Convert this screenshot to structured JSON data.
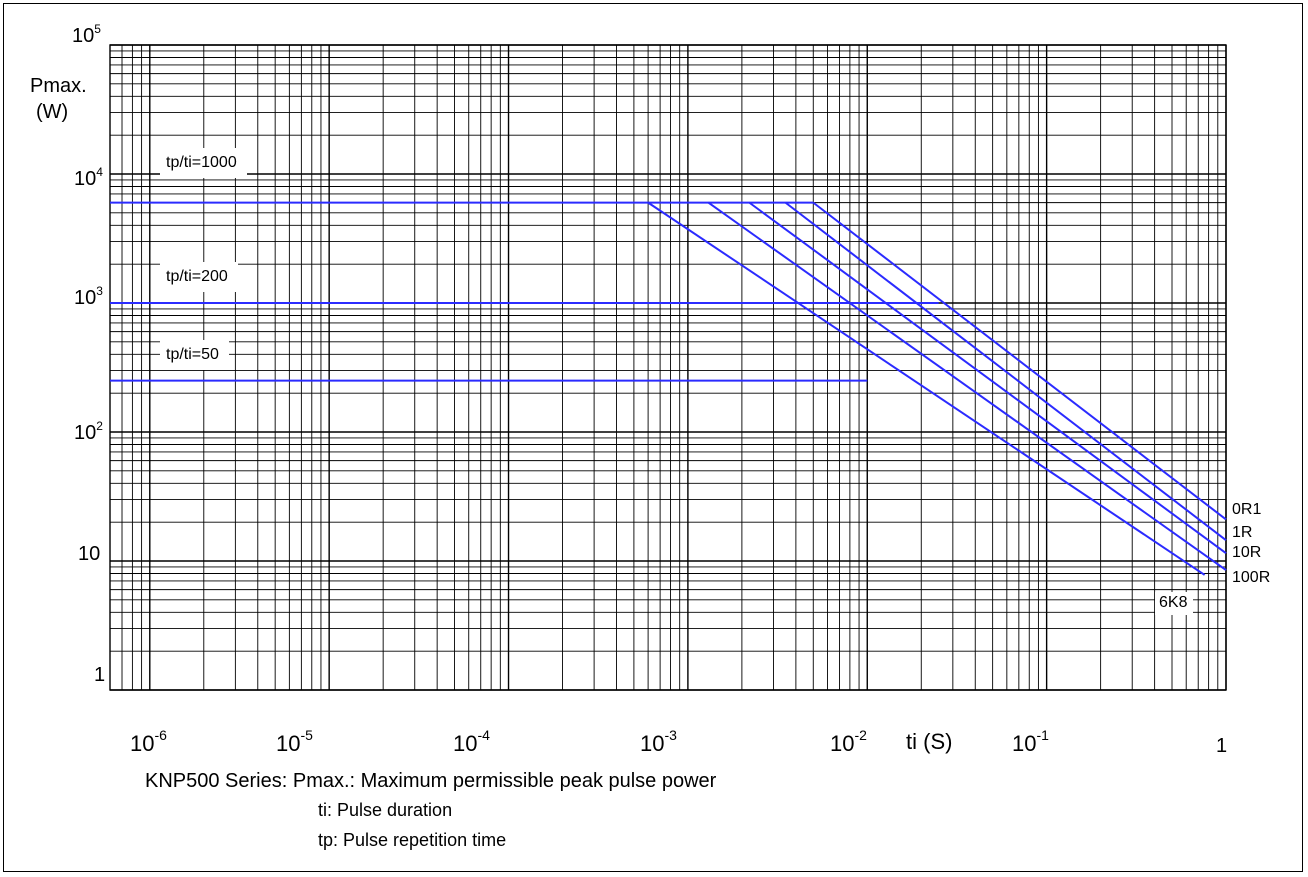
{
  "chart_data": {
    "type": "line",
    "x_scale": "log",
    "y_scale": "log",
    "xlim": [
      6e-07,
      1
    ],
    "ylim": [
      1,
      100000
    ],
    "grid": true,
    "y_axis_title": [
      "Pmax.",
      "(W)"
    ],
    "x_axis_title": "ti (S)",
    "y_ticks": [
      {
        "value": 100000,
        "base": "10",
        "exp": "5"
      },
      {
        "value": 10000,
        "base": "10",
        "exp": "4"
      },
      {
        "value": 1000,
        "base": "10",
        "exp": "3"
      },
      {
        "value": 100,
        "base": "10",
        "exp": "2"
      },
      {
        "value": 10,
        "base": "10",
        "exp": ""
      },
      {
        "value": 1,
        "base": "1",
        "exp": ""
      }
    ],
    "x_ticks": [
      {
        "value": 1e-06,
        "base": "10",
        "exp": "-6"
      },
      {
        "value": 1e-05,
        "base": "10",
        "exp": "-5"
      },
      {
        "value": 0.0001,
        "base": "10",
        "exp": "-4"
      },
      {
        "value": 0.001,
        "base": "10",
        "exp": "-3"
      },
      {
        "value": 0.01,
        "base": "10",
        "exp": "-2"
      },
      {
        "value": 0.1,
        "base": "10",
        "exp": "-1"
      },
      {
        "value": 1,
        "base": "1",
        "exp": ""
      }
    ],
    "ratio_lines": [
      {
        "label": "tp/ti=1000",
        "y": 6000,
        "x_end": 0.005
      },
      {
        "label": "tp/ti=200",
        "y": 1000,
        "x_end": 0.025
      },
      {
        "label": "tp/ti=50",
        "y": 250,
        "x_end": 0.01
      }
    ],
    "series": [
      {
        "name": "0R1",
        "points": [
          [
            0.005,
            6000
          ],
          [
            1,
            21
          ]
        ]
      },
      {
        "name": "1R",
        "points": [
          [
            0.0035,
            6000
          ],
          [
            1,
            14.5
          ]
        ]
      },
      {
        "name": "10R",
        "points": [
          [
            0.0022,
            6000
          ],
          [
            1,
            11.5
          ]
        ]
      },
      {
        "name": "100R",
        "points": [
          [
            0.0013,
            6000
          ],
          [
            1,
            8.5
          ]
        ]
      },
      {
        "name": "6K8",
        "points": [
          [
            0.0006,
            6000
          ],
          [
            0.76,
            7.8
          ]
        ]
      }
    ]
  },
  "caption": {
    "line1": "KNP500 Series: Pmax.: Maximum permissible peak pulse power",
    "line2": "ti: Pulse duration",
    "line3": "tp: Pulse repetition time"
  },
  "colors": {
    "curve": "#2b2bff",
    "grid": "#000000",
    "background": "#ffffff"
  }
}
